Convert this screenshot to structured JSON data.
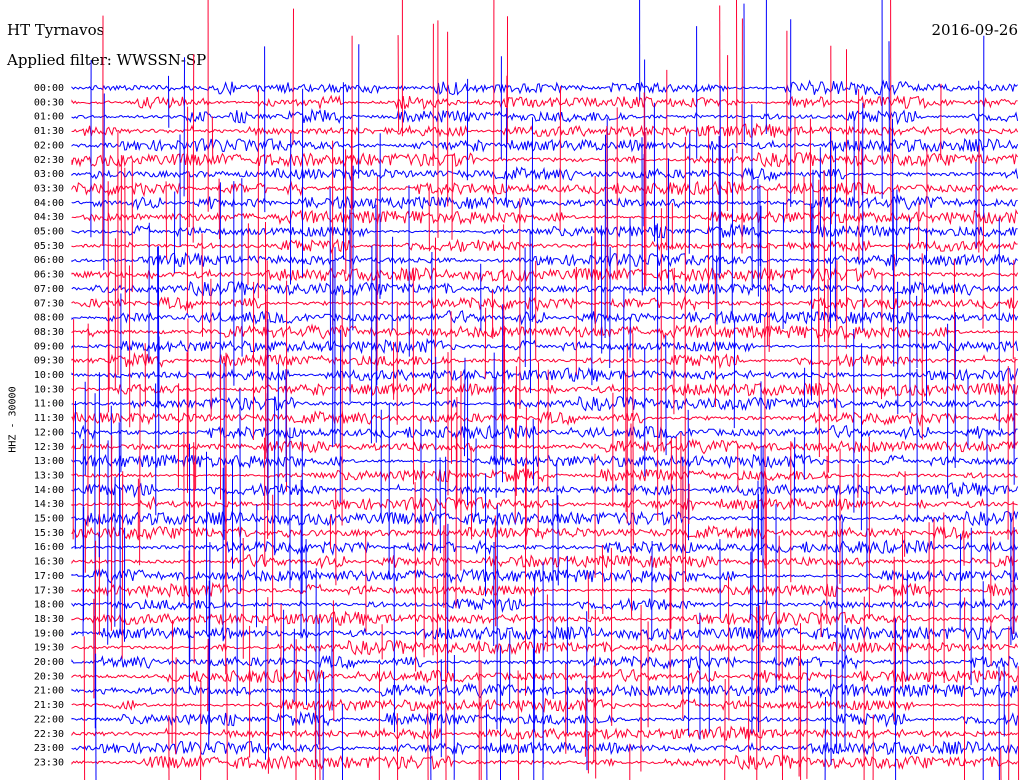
{
  "header": {
    "station": "HT Tyrnavos",
    "date": "2016-09-26",
    "filter_label": "Applied filter:",
    "filter_value": "WWSSN-SP"
  },
  "chart_data": {
    "type": "line",
    "title": "HT Tyrnavos",
    "subtitle": "Applied filter: WWSSN-SP",
    "date": "2016-09-26",
    "ylabel": "HHZ - 30000",
    "xlabel": "",
    "row_labels": [
      "00:00",
      "00:30",
      "01:00",
      "01:30",
      "02:00",
      "02:30",
      "03:00",
      "03:30",
      "04:00",
      "04:30",
      "05:00",
      "05:30",
      "06:00",
      "06:30",
      "07:00",
      "07:30",
      "08:00",
      "08:30",
      "09:00",
      "09:30",
      "10:00",
      "10:30",
      "11:00",
      "11:30",
      "12:00",
      "12:30",
      "13:00",
      "13:30",
      "14:00",
      "14:30",
      "15:00",
      "15:30",
      "16:00",
      "16:30",
      "17:00",
      "17:30",
      "18:00",
      "18:30",
      "19:00",
      "19:30",
      "20:00",
      "20:30",
      "21:00",
      "21:30",
      "22:00",
      "22:30",
      "23:00",
      "23:30"
    ],
    "row_minutes": 30,
    "series_colors": [
      "#0000ff",
      "#ff0033"
    ],
    "grid": false,
    "legend": "none"
  }
}
